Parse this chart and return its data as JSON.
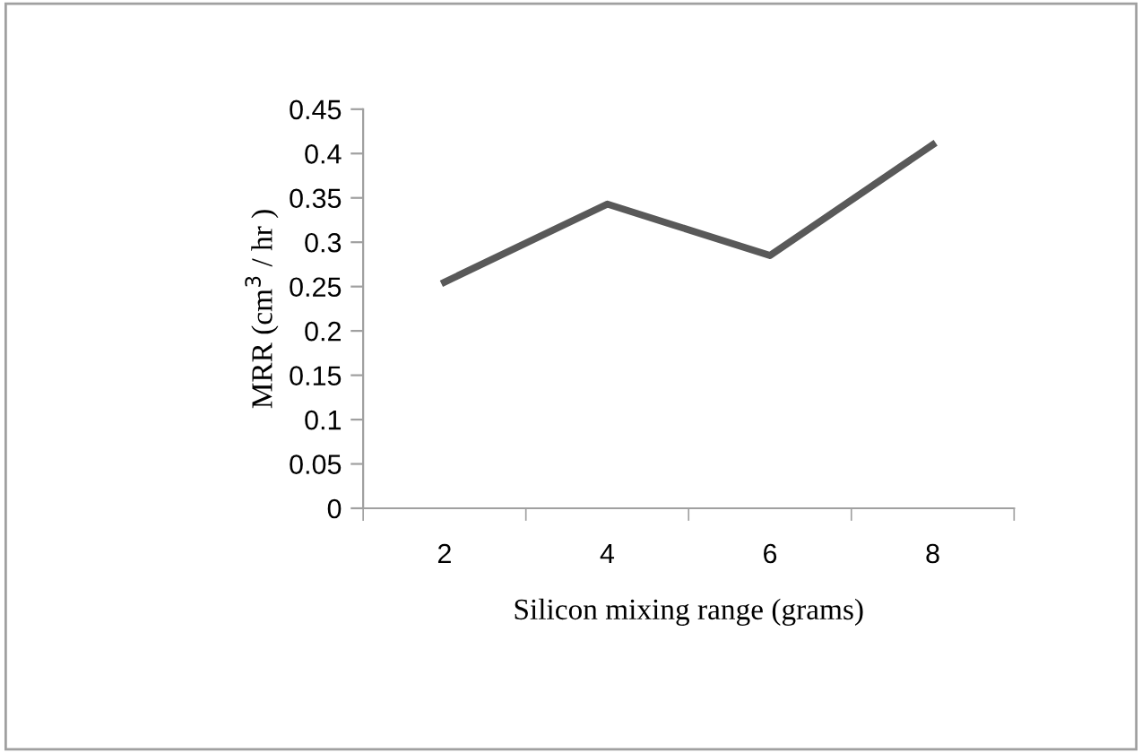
{
  "chart_data": {
    "type": "line",
    "xlabel": "Silicon mixing range (grams)",
    "ylabel": "MRR (cm$^{3}$ / hr )",
    "categories": [
      "2",
      "4",
      "6",
      "8"
    ],
    "series": [
      {
        "color": "#595959",
        "values": [
          0.255,
          0.343,
          0.285,
          0.41
        ]
      }
    ],
    "ylim": [
      0,
      0.45
    ],
    "yticks": [
      0,
      0.05,
      0.1,
      0.15,
      0.2,
      0.25,
      0.3,
      0.35,
      0.4,
      0.45
    ],
    "grid": false,
    "legend": false,
    "marker": "none",
    "line_style": "solid"
  }
}
